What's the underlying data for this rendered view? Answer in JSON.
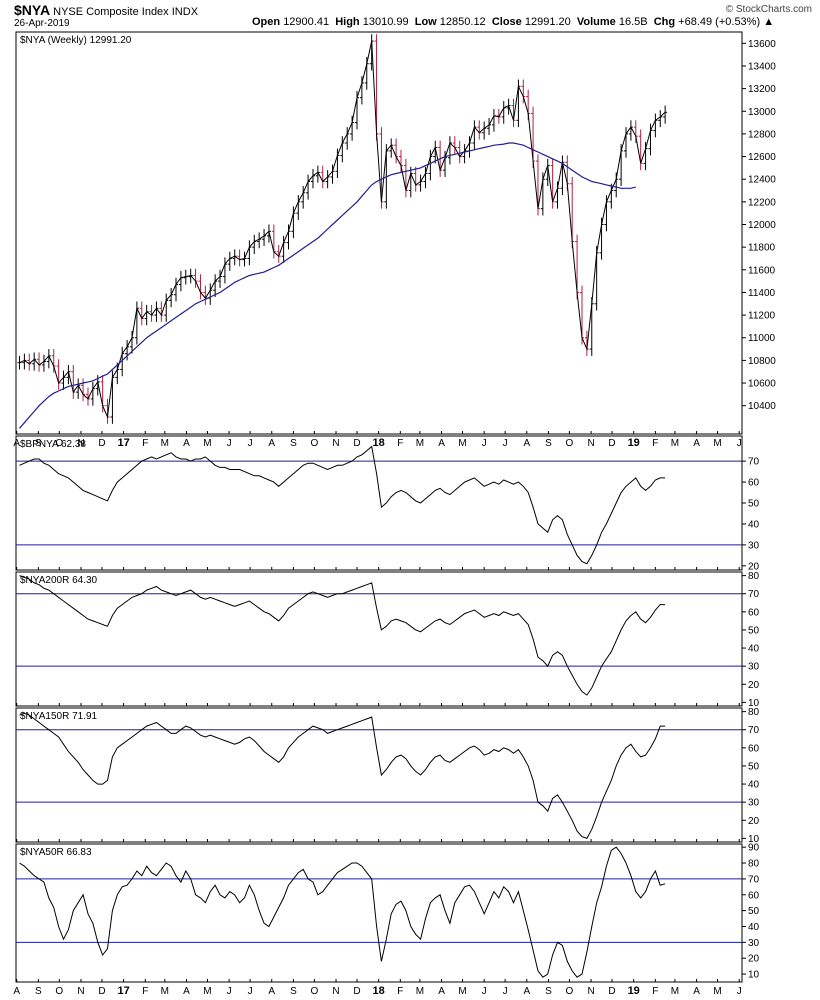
{
  "header": {
    "symbol": "$NYA",
    "name": "NYSE Composite Index",
    "exchange": "INDX",
    "date": "26-Apr-2019",
    "open_label": "Open",
    "open": "12900.41",
    "high_label": "High",
    "high": "13010.99",
    "low_label": "Low",
    "low": "12850.12",
    "close_label": "Close",
    "close": "12991.20",
    "volume_label": "Volume",
    "volume": "16.5B",
    "chg_label": "Chg",
    "chg": "+68.49 (+0.53%)",
    "watermark": "© StockCharts.com"
  },
  "colors": {
    "price_up": "#000000",
    "price_down": "#b02040",
    "ma": "#1e1e96",
    "ref_line": "#1e1e96",
    "indicator": "#000000"
  },
  "chart_data": [
    {
      "type": "line",
      "id": "price",
      "label": "$NYA (Weekly) 12991.20",
      "ylim": [
        10150,
        13700
      ],
      "yticks": [
        10400,
        10600,
        10800,
        11000,
        11200,
        11400,
        11600,
        11800,
        12000,
        12200,
        12400,
        12600,
        12800,
        13000,
        13200,
        13400,
        13600
      ],
      "x_start": "2016-08-05",
      "x_interval_days": 7,
      "series": [
        {
          "values": [
            10780,
            10800,
            10770,
            10810,
            10760,
            10790,
            10840,
            10750,
            10600,
            10650,
            10700,
            10520,
            10580,
            10500,
            10460,
            10550,
            10610,
            10400,
            10300,
            10650,
            10720,
            10860,
            10920,
            11000,
            11260,
            11170,
            11230,
            11200,
            11260,
            11200,
            11330,
            11380,
            11470,
            11530,
            11540,
            11550,
            11500,
            11400,
            11350,
            11420,
            11500,
            11540,
            11650,
            11700,
            11720,
            11690,
            11700,
            11800,
            11850,
            11870,
            11900,
            11940,
            11760,
            11720,
            11840,
            11940,
            12100,
            12200,
            12280,
            12380,
            12430,
            12460,
            12380,
            12420,
            12470,
            12610,
            12720,
            12800,
            12900,
            13120,
            13250,
            13420,
            13620,
            12800,
            12200,
            12650,
            12700,
            12600,
            12520,
            12300,
            12450,
            12350,
            12380,
            12450,
            12600,
            12680,
            12480,
            12590,
            12720,
            12680,
            12600,
            12650,
            12720,
            12860,
            12810,
            12850,
            12880,
            12960,
            12950,
            13030,
            13050,
            12920,
            13220,
            13130,
            12980,
            12560,
            12140,
            12400,
            12520,
            12200,
            12320,
            12550,
            12360,
            11850,
            11400,
            11000,
            10900,
            11300,
            11750,
            12000,
            12200,
            12300,
            12400,
            12650,
            12800,
            12860,
            12780,
            12540,
            12670,
            12830,
            12920,
            12950,
            12991
          ]
        },
        {
          "values": [
            10200,
            10250,
            10300,
            10350,
            10400,
            10440,
            10480,
            10510,
            10530,
            10550,
            10570,
            10580,
            10590,
            10600,
            10610,
            10620,
            10640,
            10660,
            10680,
            10720,
            10760,
            10800,
            10840,
            10880,
            10920,
            10960,
            11000,
            11030,
            11060,
            11090,
            11120,
            11150,
            11180,
            11210,
            11240,
            11270,
            11300,
            11320,
            11340,
            11360,
            11380,
            11400,
            11430,
            11460,
            11490,
            11510,
            11530,
            11550,
            11560,
            11570,
            11580,
            11600,
            11620,
            11640,
            11670,
            11700,
            11730,
            11760,
            11790,
            11820,
            11850,
            11880,
            11920,
            11960,
            12000,
            12040,
            12080,
            12120,
            12160,
            12200,
            12250,
            12300,
            12350,
            12380,
            12400,
            12420,
            12440,
            12450,
            12460,
            12470,
            12480,
            12490,
            12500,
            12520,
            12540,
            12560,
            12580,
            12600,
            12610,
            12620,
            12630,
            12640,
            12650,
            12660,
            12670,
            12680,
            12690,
            12700,
            12705,
            12710,
            12720,
            12720,
            12710,
            12700,
            12680,
            12660,
            12640,
            12620,
            12600,
            12580,
            12560,
            12540,
            12510,
            12480,
            12450,
            12420,
            12400,
            12380,
            12370,
            12360,
            12350,
            12340,
            12330,
            12320,
            12320,
            12320,
            12330
          ]
        }
      ]
    },
    {
      "type": "line",
      "id": "bpnya",
      "label": "$BPNYA 62.38",
      "ylim": [
        18,
        82
      ],
      "yticks": [
        20,
        30,
        40,
        50,
        60,
        70
      ],
      "ref_lines": [
        70,
        30
      ],
      "series": [
        {
          "values": [
            68,
            69,
            70,
            71,
            71,
            69,
            68,
            66,
            64,
            63,
            62,
            60,
            58,
            56,
            55,
            54,
            53,
            52,
            51,
            56,
            60,
            62,
            64,
            66,
            68,
            70,
            71,
            72,
            71,
            72,
            73,
            74,
            72,
            71,
            71,
            70,
            71,
            71,
            72,
            70,
            68,
            67,
            67,
            66,
            66,
            66,
            65,
            64,
            63,
            63,
            62,
            61,
            60,
            58,
            60,
            62,
            64,
            66,
            68,
            69,
            69,
            68,
            67,
            66,
            67,
            68,
            68,
            69,
            70,
            72,
            73,
            75,
            77,
            64,
            48,
            50,
            53,
            55,
            56,
            55,
            53,
            51,
            50,
            52,
            54,
            56,
            57,
            55,
            54,
            56,
            58,
            60,
            61,
            62,
            60,
            58,
            59,
            60,
            59,
            61,
            60,
            59,
            60,
            58,
            55,
            48,
            40,
            38,
            36,
            42,
            44,
            42,
            35,
            30,
            25,
            22,
            21,
            25,
            30,
            36,
            40,
            45,
            50,
            55,
            58,
            60,
            62,
            58,
            56,
            58,
            61,
            62,
            62
          ]
        }
      ]
    },
    {
      "type": "line",
      "id": "nya200r",
      "label": "$NYA200R 64.30",
      "ylim": [
        8,
        82
      ],
      "yticks": [
        10,
        20,
        30,
        40,
        50,
        60,
        70,
        80
      ],
      "ref_lines": [
        70,
        30
      ],
      "series": [
        {
          "values": [
            80,
            79,
            78,
            76,
            75,
            73,
            72,
            70,
            68,
            66,
            64,
            62,
            60,
            58,
            56,
            55,
            54,
            53,
            52,
            58,
            62,
            64,
            66,
            68,
            69,
            70,
            72,
            73,
            74,
            72,
            71,
            70,
            69,
            70,
            71,
            72,
            70,
            68,
            67,
            68,
            67,
            66,
            65,
            64,
            63,
            64,
            65,
            66,
            64,
            62,
            60,
            59,
            57,
            55,
            58,
            62,
            64,
            66,
            68,
            70,
            71,
            70,
            69,
            68,
            69,
            70,
            70,
            71,
            72,
            73,
            74,
            75,
            76,
            62,
            50,
            52,
            55,
            56,
            55,
            54,
            52,
            50,
            49,
            51,
            53,
            55,
            56,
            54,
            53,
            55,
            57,
            59,
            60,
            61,
            59,
            57,
            58,
            59,
            58,
            60,
            59,
            58,
            59,
            56,
            53,
            45,
            35,
            33,
            30,
            36,
            38,
            36,
            30,
            25,
            20,
            16,
            14,
            18,
            24,
            30,
            34,
            38,
            44,
            50,
            55,
            58,
            60,
            56,
            54,
            57,
            61,
            64,
            64
          ]
        }
      ]
    },
    {
      "type": "line",
      "id": "nya150r",
      "label": "$NYA150R 71.91",
      "ylim": [
        8,
        82
      ],
      "yticks": [
        10,
        20,
        30,
        40,
        50,
        60,
        70,
        80
      ],
      "ref_lines": [
        70,
        30
      ],
      "series": [
        {
          "values": [
            78,
            79,
            78,
            76,
            74,
            72,
            70,
            68,
            66,
            62,
            58,
            55,
            52,
            48,
            45,
            42,
            40,
            40,
            42,
            55,
            60,
            62,
            64,
            66,
            68,
            70,
            72,
            73,
            74,
            72,
            70,
            68,
            68,
            70,
            72,
            71,
            69,
            67,
            66,
            67,
            66,
            65,
            64,
            63,
            62,
            63,
            65,
            66,
            64,
            61,
            58,
            56,
            54,
            52,
            55,
            60,
            63,
            66,
            68,
            70,
            72,
            71,
            70,
            68,
            69,
            70,
            71,
            72,
            73,
            74,
            75,
            76,
            77,
            60,
            45,
            48,
            52,
            55,
            56,
            54,
            50,
            47,
            45,
            48,
            52,
            55,
            56,
            53,
            52,
            54,
            56,
            58,
            60,
            61,
            59,
            56,
            57,
            59,
            58,
            60,
            59,
            57,
            59,
            55,
            50,
            42,
            30,
            28,
            25,
            32,
            34,
            30,
            25,
            20,
            14,
            11,
            10,
            15,
            22,
            30,
            36,
            42,
            50,
            56,
            60,
            62,
            58,
            55,
            56,
            60,
            65,
            72,
            72
          ]
        }
      ]
    },
    {
      "type": "line",
      "id": "nya50r",
      "label": "$NYA50R 66.83",
      "ylim": [
        5,
        92
      ],
      "yticks": [
        10,
        20,
        30,
        40,
        50,
        60,
        70,
        80,
        90
      ],
      "ref_lines": [
        70,
        30
      ],
      "series": [
        {
          "values": [
            80,
            78,
            75,
            72,
            70,
            68,
            58,
            52,
            40,
            32,
            38,
            50,
            55,
            60,
            48,
            42,
            30,
            22,
            26,
            50,
            60,
            65,
            66,
            70,
            75,
            72,
            78,
            74,
            72,
            76,
            80,
            78,
            72,
            68,
            75,
            70,
            60,
            58,
            55,
            62,
            66,
            60,
            58,
            62,
            60,
            55,
            58,
            66,
            60,
            50,
            42,
            40,
            46,
            52,
            58,
            66,
            70,
            74,
            76,
            70,
            68,
            60,
            62,
            66,
            70,
            74,
            76,
            78,
            80,
            80,
            78,
            74,
            70,
            40,
            18,
            32,
            48,
            54,
            56,
            50,
            40,
            35,
            32,
            45,
            55,
            58,
            60,
            50,
            42,
            55,
            60,
            65,
            66,
            62,
            55,
            48,
            55,
            62,
            58,
            65,
            62,
            55,
            62,
            50,
            38,
            25,
            12,
            8,
            10,
            22,
            30,
            28,
            18,
            12,
            8,
            10,
            24,
            40,
            55,
            65,
            78,
            88,
            90,
            86,
            80,
            72,
            62,
            58,
            62,
            70,
            75,
            66,
            67
          ]
        }
      ]
    }
  ],
  "x_axis": {
    "labels": [
      {
        "t": "A",
        "d": "2016-08-01"
      },
      {
        "t": "S",
        "d": "2016-09-01"
      },
      {
        "t": "O",
        "d": "2016-10-01"
      },
      {
        "t": "N",
        "d": "2016-11-01"
      },
      {
        "t": "D",
        "d": "2016-12-01"
      },
      {
        "t": "17",
        "d": "2017-01-01",
        "bold": true
      },
      {
        "t": "F",
        "d": "2017-02-01"
      },
      {
        "t": "M",
        "d": "2017-03-01"
      },
      {
        "t": "A",
        "d": "2017-04-01"
      },
      {
        "t": "M",
        "d": "2017-05-01"
      },
      {
        "t": "J",
        "d": "2017-06-01"
      },
      {
        "t": "J",
        "d": "2017-07-01"
      },
      {
        "t": "A",
        "d": "2017-08-01"
      },
      {
        "t": "S",
        "d": "2017-09-01"
      },
      {
        "t": "O",
        "d": "2017-10-01"
      },
      {
        "t": "N",
        "d": "2017-11-01"
      },
      {
        "t": "D",
        "d": "2017-12-01"
      },
      {
        "t": "18",
        "d": "2018-01-01",
        "bold": true
      },
      {
        "t": "F",
        "d": "2018-02-01"
      },
      {
        "t": "M",
        "d": "2018-03-01"
      },
      {
        "t": "A",
        "d": "2018-04-01"
      },
      {
        "t": "M",
        "d": "2018-05-01"
      },
      {
        "t": "J",
        "d": "2018-06-01"
      },
      {
        "t": "J",
        "d": "2018-07-01"
      },
      {
        "t": "A",
        "d": "2018-08-01"
      },
      {
        "t": "S",
        "d": "2018-09-01"
      },
      {
        "t": "O",
        "d": "2018-10-01"
      },
      {
        "t": "N",
        "d": "2018-11-01"
      },
      {
        "t": "D",
        "d": "2018-12-01"
      },
      {
        "t": "19",
        "d": "2019-01-01",
        "bold": true
      },
      {
        "t": "F",
        "d": "2019-02-01"
      },
      {
        "t": "M",
        "d": "2019-03-01"
      },
      {
        "t": "A",
        "d": "2019-04-01"
      },
      {
        "t": "M",
        "d": "2019-05-01"
      },
      {
        "t": "J",
        "d": "2019-06-01"
      }
    ],
    "range": [
      "2016-07-31",
      "2019-06-05"
    ]
  }
}
